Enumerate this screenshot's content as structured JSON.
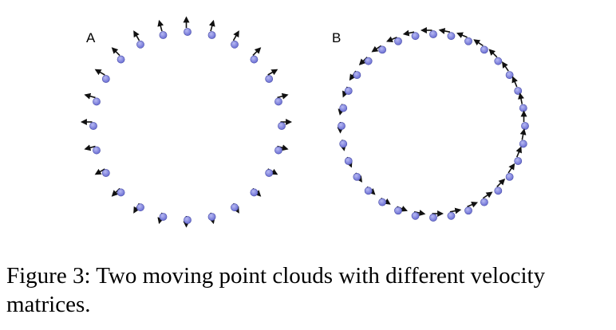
{
  "figure": {
    "panels": [
      {
        "label": "A",
        "field": "radial",
        "point_count": 24
      },
      {
        "label": "B",
        "field": "rotational",
        "point_count": 32
      }
    ],
    "colors": {
      "point": "#7b7fdc",
      "point_edge": "#4c50a8",
      "arrow": "#111111"
    }
  },
  "caption": {
    "text": "Figure 3: Two moving point clouds with different velocity matrices."
  }
}
